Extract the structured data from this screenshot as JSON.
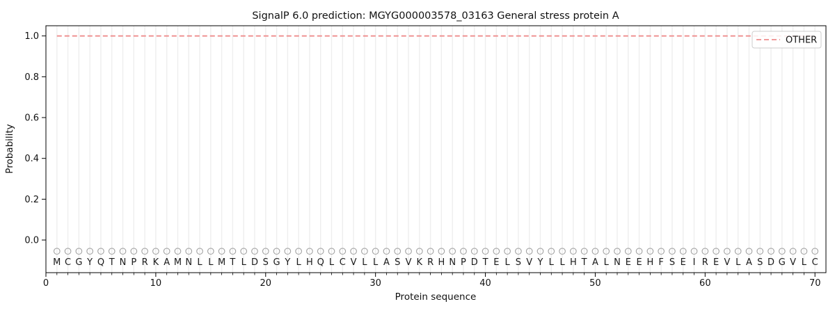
{
  "chart_data": {
    "type": "line",
    "title": "SignalP 6.0 prediction: MGYG000003578_03163 General stress protein A",
    "xlabel": "Protein sequence",
    "ylabel": "Probability",
    "xlim": [
      0,
      71
    ],
    "ylim": [
      -0.16,
      1.05
    ],
    "x_ticks": [
      0,
      10,
      20,
      30,
      40,
      50,
      60,
      70
    ],
    "y_ticks": [
      0.0,
      0.2,
      0.4,
      0.6,
      0.8,
      1.0
    ],
    "grid": "vertical line at every residue position",
    "legend_position": "upper right",
    "legend": [
      {
        "label": "OTHER",
        "style": "dashed",
        "color": "#ee8c8c"
      }
    ],
    "series": [
      {
        "name": "OTHER",
        "style": "dashed",
        "color": "#ee8c8c",
        "x_start": 1,
        "x_end": 70,
        "value": 1.0
      }
    ],
    "sequence": "MCGYQTNPRKAMNLLMTLDSGYLHQLCVLLASVKRHNPDTELSVYLLHTALNEEHFSEIREVLASDGVLC",
    "sequence_marker": "open-circle",
    "marker_y": -0.055,
    "letter_y": -0.107,
    "colors": {
      "line": "#ee8c8c",
      "grid": "#eeeeee",
      "marker_stroke": "#a3a3a3",
      "frame": "#000000",
      "legend_border": "#cccccc",
      "text": "#111111"
    }
  }
}
